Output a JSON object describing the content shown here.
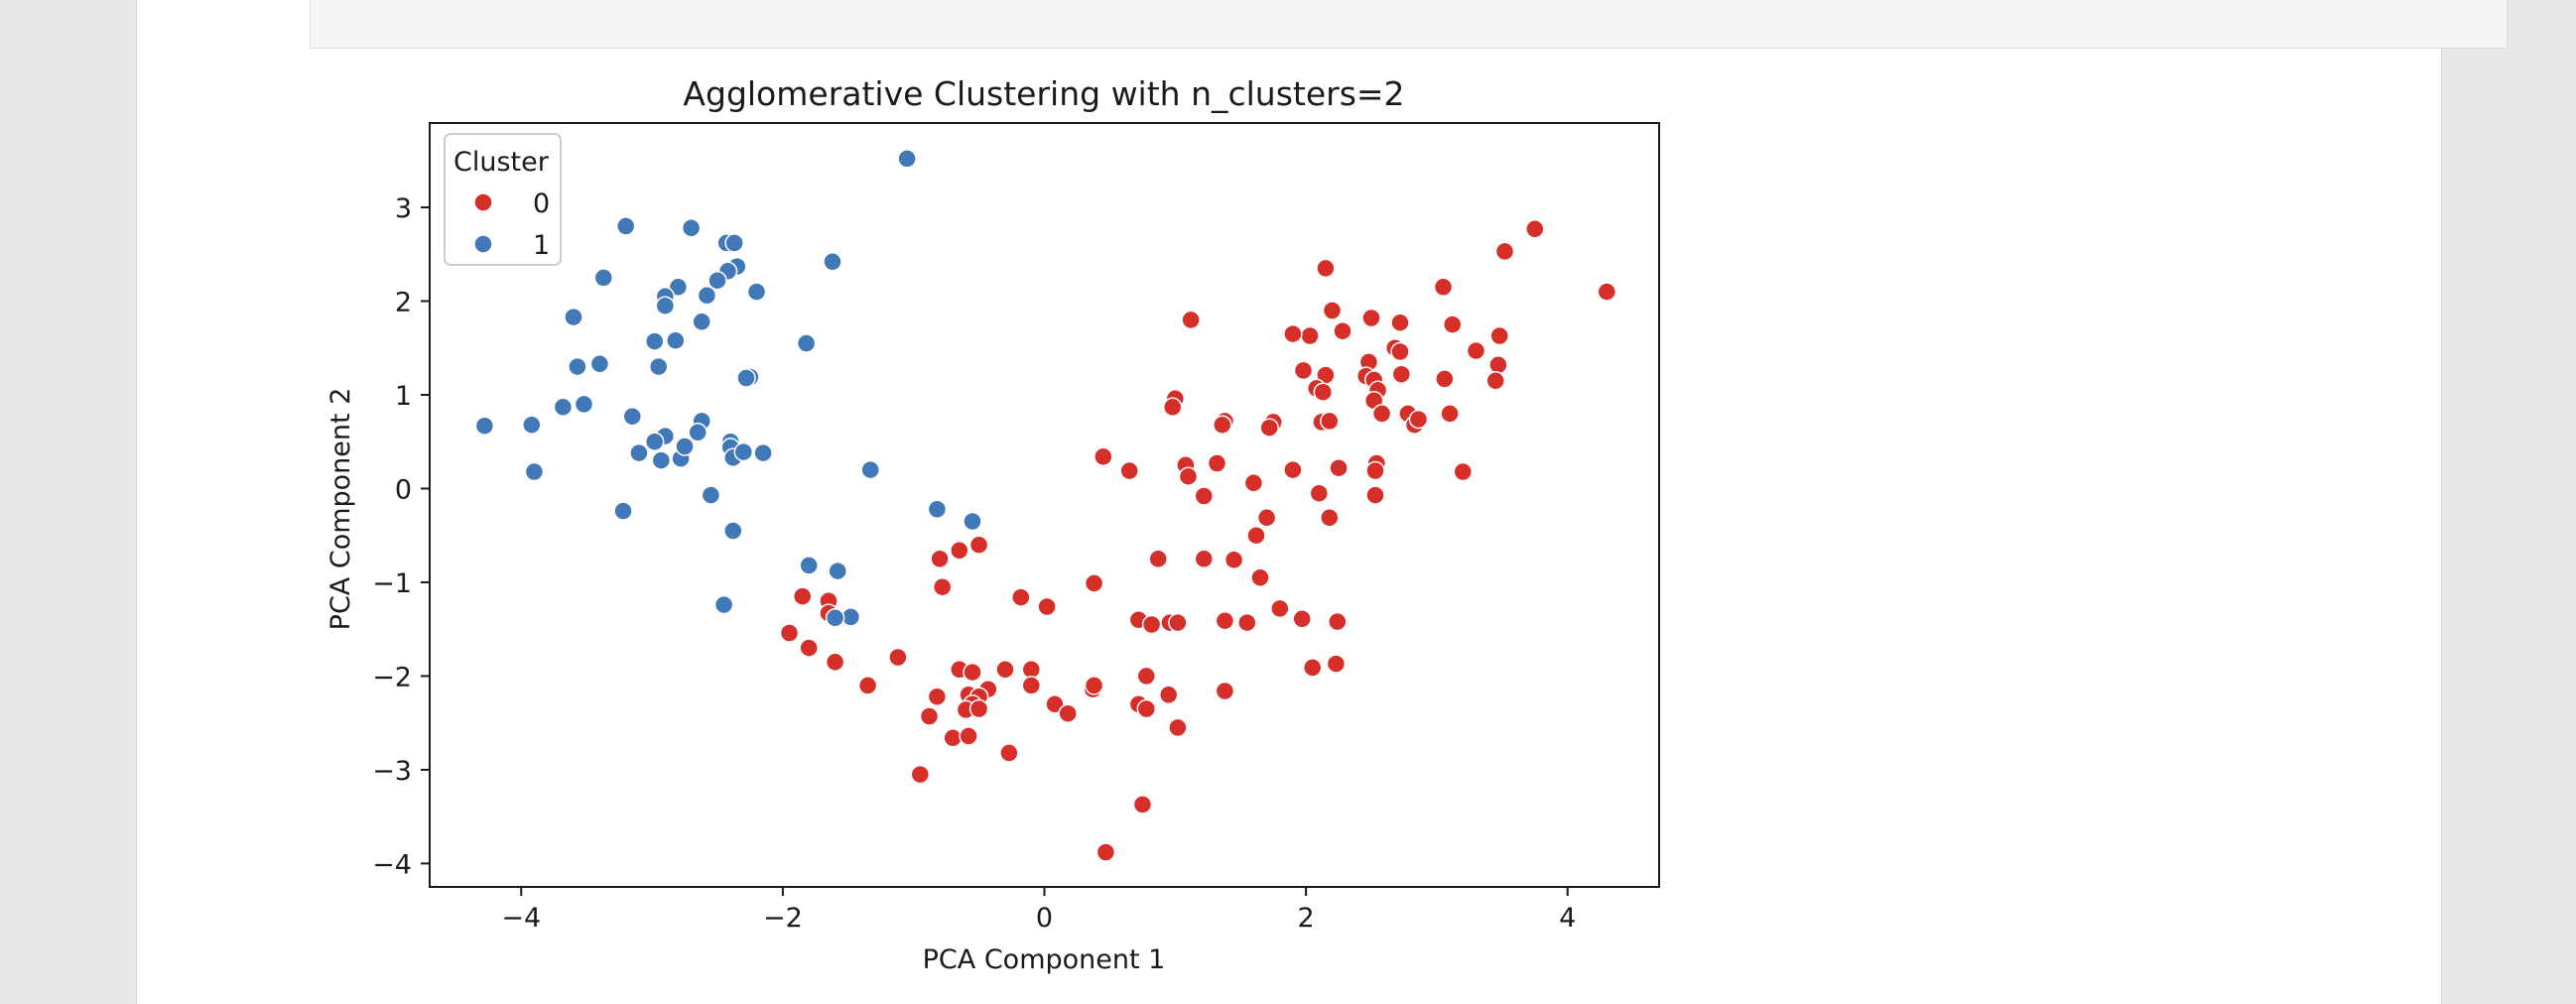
{
  "chart_data": {
    "type": "scatter",
    "title": "Agglomerative Clustering with n_clusters=2",
    "xlabel": "PCA Component 1",
    "ylabel": "PCA Component 2",
    "xlim": [
      -4.7,
      4.7
    ],
    "ylim": [
      -4.25,
      3.9
    ],
    "xticks": [
      -4,
      -2,
      0,
      2,
      4
    ],
    "yticks": [
      -4,
      -3,
      -2,
      -1,
      0,
      1,
      2,
      3
    ],
    "grid": false,
    "legend": {
      "title": "Cluster",
      "placement": "top-left"
    },
    "series": [
      {
        "name": "0",
        "color": "#d62f2a",
        "points": [
          [
            4.3,
            2.1
          ],
          [
            3.75,
            2.77
          ],
          [
            3.52,
            2.53
          ],
          [
            3.05,
            2.15
          ],
          [
            3.12,
            1.75
          ],
          [
            3.48,
            1.63
          ],
          [
            3.3,
            1.47
          ],
          [
            3.47,
            1.32
          ],
          [
            3.06,
            1.17
          ],
          [
            3.45,
            1.15
          ],
          [
            3.1,
            0.8
          ],
          [
            3.2,
            0.18
          ],
          [
            2.72,
            1.77
          ],
          [
            2.68,
            1.5
          ],
          [
            2.72,
            1.46
          ],
          [
            2.5,
            1.82
          ],
          [
            2.48,
            1.35
          ],
          [
            2.46,
            1.2
          ],
          [
            2.52,
            1.16
          ],
          [
            2.55,
            1.05
          ],
          [
            2.52,
            0.94
          ],
          [
            2.58,
            0.8
          ],
          [
            2.73,
            1.22
          ],
          [
            2.78,
            0.8
          ],
          [
            2.83,
            0.68
          ],
          [
            2.86,
            0.74
          ],
          [
            2.15,
            2.35
          ],
          [
            2.2,
            1.9
          ],
          [
            2.28,
            1.68
          ],
          [
            2.03,
            1.63
          ],
          [
            1.9,
            1.65
          ],
          [
            1.98,
            1.26
          ],
          [
            2.15,
            1.21
          ],
          [
            2.08,
            1.07
          ],
          [
            2.13,
            1.03
          ],
          [
            2.12,
            0.71
          ],
          [
            2.18,
            0.72
          ],
          [
            2.25,
            0.22
          ],
          [
            2.1,
            -0.05
          ],
          [
            2.18,
            -0.31
          ],
          [
            2.54,
            0.27
          ],
          [
            2.53,
            0.19
          ],
          [
            2.53,
            -0.07
          ],
          [
            1.12,
            1.8
          ],
          [
            1.0,
            0.96
          ],
          [
            0.98,
            0.87
          ],
          [
            1.38,
            0.72
          ],
          [
            1.36,
            0.68
          ],
          [
            1.75,
            0.71
          ],
          [
            1.72,
            0.65
          ],
          [
            1.08,
            0.25
          ],
          [
            1.1,
            0.13
          ],
          [
            1.32,
            0.27
          ],
          [
            1.22,
            -0.08
          ],
          [
            1.9,
            0.2
          ],
          [
            1.6,
            0.06
          ],
          [
            1.7,
            -0.31
          ],
          [
            1.62,
            -0.5
          ],
          [
            0.45,
            0.34
          ],
          [
            0.65,
            0.19
          ],
          [
            0.87,
            -0.75
          ],
          [
            1.22,
            -0.75
          ],
          [
            1.45,
            -0.76
          ],
          [
            1.65,
            -0.95
          ],
          [
            0.72,
            -1.4
          ],
          [
            0.82,
            -1.45
          ],
          [
            0.96,
            -1.43
          ],
          [
            1.02,
            -1.43
          ],
          [
            1.38,
            -1.41
          ],
          [
            1.55,
            -1.43
          ],
          [
            1.8,
            -1.28
          ],
          [
            1.97,
            -1.39
          ],
          [
            2.24,
            -1.42
          ],
          [
            2.05,
            -1.91
          ],
          [
            2.23,
            -1.87
          ],
          [
            1.38,
            -2.16
          ],
          [
            0.78,
            -2.0
          ],
          [
            0.95,
            -2.2
          ],
          [
            0.72,
            -2.3
          ],
          [
            0.78,
            -2.35
          ],
          [
            1.02,
            -2.55
          ],
          [
            0.75,
            -3.37
          ],
          [
            0.47,
            -3.88
          ],
          [
            0.38,
            -1.01
          ],
          [
            0.02,
            -1.26
          ],
          [
            -0.18,
            -1.16
          ],
          [
            -0.5,
            -0.6
          ],
          [
            -0.78,
            -1.05
          ],
          [
            -0.65,
            -0.66
          ],
          [
            -0.8,
            -0.75
          ],
          [
            -1.65,
            -1.2
          ],
          [
            -1.85,
            -1.15
          ],
          [
            -1.65,
            -1.33
          ],
          [
            -1.95,
            -1.54
          ],
          [
            -1.8,
            -1.7
          ],
          [
            -1.6,
            -1.85
          ],
          [
            -1.35,
            -2.1
          ],
          [
            -1.12,
            -1.8
          ],
          [
            -0.65,
            -1.93
          ],
          [
            -0.55,
            -1.96
          ],
          [
            -0.3,
            -1.93
          ],
          [
            -0.1,
            -1.93
          ],
          [
            -0.43,
            -2.14
          ],
          [
            -0.1,
            -2.1
          ],
          [
            -0.58,
            -2.2
          ],
          [
            -0.5,
            -2.22
          ],
          [
            -0.55,
            -2.3
          ],
          [
            -0.6,
            -2.36
          ],
          [
            -0.5,
            -2.35
          ],
          [
            -0.82,
            -2.22
          ],
          [
            -0.88,
            -2.43
          ],
          [
            0.08,
            -2.3
          ],
          [
            0.18,
            -2.4
          ],
          [
            0.37,
            -2.14
          ],
          [
            0.38,
            -2.1
          ],
          [
            -0.7,
            -2.66
          ],
          [
            -0.58,
            -2.64
          ],
          [
            -0.27,
            -2.82
          ],
          [
            -0.95,
            -3.05
          ]
        ]
      },
      {
        "name": "1",
        "color": "#4178b8",
        "points": [
          [
            -1.05,
            3.52
          ],
          [
            -3.2,
            2.8
          ],
          [
            -2.7,
            2.78
          ],
          [
            -2.43,
            2.62
          ],
          [
            -2.37,
            2.62
          ],
          [
            -2.35,
            2.37
          ],
          [
            -2.42,
            2.32
          ],
          [
            -2.5,
            2.22
          ],
          [
            -2.58,
            2.06
          ],
          [
            -2.2,
            2.1
          ],
          [
            -1.62,
            2.42
          ],
          [
            -3.37,
            2.25
          ],
          [
            -2.8,
            2.15
          ],
          [
            -2.9,
            2.05
          ],
          [
            -2.9,
            1.95
          ],
          [
            -3.6,
            1.83
          ],
          [
            -2.62,
            1.78
          ],
          [
            -2.98,
            1.57
          ],
          [
            -2.82,
            1.58
          ],
          [
            -1.82,
            1.55
          ],
          [
            -3.57,
            1.3
          ],
          [
            -3.4,
            1.33
          ],
          [
            -2.95,
            1.3
          ],
          [
            -2.25,
            1.19
          ],
          [
            -2.28,
            1.18
          ],
          [
            -3.68,
            0.87
          ],
          [
            -3.52,
            0.9
          ],
          [
            -3.15,
            0.77
          ],
          [
            -2.62,
            0.72
          ],
          [
            -2.65,
            0.6
          ],
          [
            -2.9,
            0.56
          ],
          [
            -2.98,
            0.5
          ],
          [
            -3.1,
            0.38
          ],
          [
            -2.93,
            0.3
          ],
          [
            -2.78,
            0.32
          ],
          [
            -2.75,
            0.45
          ],
          [
            -2.4,
            0.5
          ],
          [
            -2.4,
            0.44
          ],
          [
            -2.38,
            0.33
          ],
          [
            -2.3,
            0.39
          ],
          [
            -2.15,
            0.38
          ],
          [
            -4.28,
            0.67
          ],
          [
            -3.92,
            0.68
          ],
          [
            -3.9,
            0.18
          ],
          [
            -3.22,
            -0.24
          ],
          [
            -2.55,
            -0.07
          ],
          [
            -2.38,
            -0.45
          ],
          [
            -1.33,
            0.2
          ],
          [
            -0.82,
            -0.22
          ],
          [
            -0.55,
            -0.35
          ],
          [
            -1.8,
            -0.82
          ],
          [
            -1.58,
            -0.88
          ],
          [
            -2.45,
            -1.24
          ],
          [
            -1.48,
            -1.37
          ],
          [
            -1.6,
            -1.38
          ]
        ]
      }
    ]
  }
}
